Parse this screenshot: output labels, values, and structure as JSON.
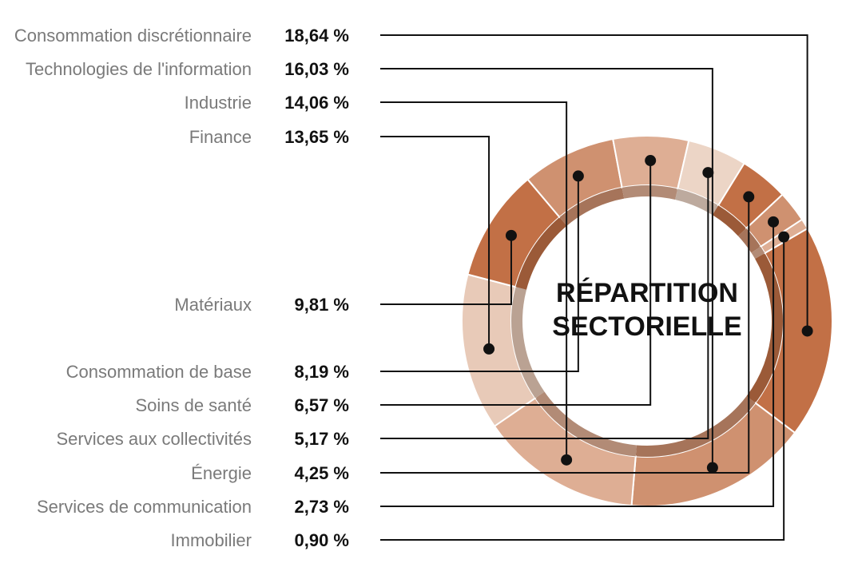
{
  "chart_data": {
    "type": "pie",
    "donut": true,
    "title_lines": [
      "RÉPARTITION",
      "SECTORIELLE"
    ],
    "slices": [
      {
        "name": "Consommation discrétionnaire",
        "value": 18.64,
        "label": "18,64 %",
        "color": "#c27046"
      },
      {
        "name": "Technologies de l'information",
        "value": 16.03,
        "label": "16,03 %",
        "color": "#cf9170"
      },
      {
        "name": "Industrie",
        "value": 14.06,
        "label": "14,06 %",
        "color": "#deae94"
      },
      {
        "name": "Finance",
        "value": 13.65,
        "label": "13,65 %",
        "color": "#e8cab8"
      },
      {
        "name": "Matériaux",
        "value": 9.81,
        "label": "9,81 %",
        "color": "#c27046"
      },
      {
        "name": "Consommation de base",
        "value": 8.19,
        "label": "8,19 %",
        "color": "#cf9170"
      },
      {
        "name": "Soins de santé",
        "value": 6.57,
        "label": "6,57 %",
        "color": "#deae94"
      },
      {
        "name": "Services aux collectivités",
        "value": 5.17,
        "label": "5,17 %",
        "color": "#ecd5c6"
      },
      {
        "name": "Énergie",
        "value": 4.25,
        "label": "4,25 %",
        "color": "#c27046"
      },
      {
        "name": "Services de communication",
        "value": 2.73,
        "label": "2,73 %",
        "color": "#cf9170"
      },
      {
        "name": "Immobilier",
        "value": 0.9,
        "label": "0,90 %",
        "color": "#deae94"
      }
    ]
  }
}
